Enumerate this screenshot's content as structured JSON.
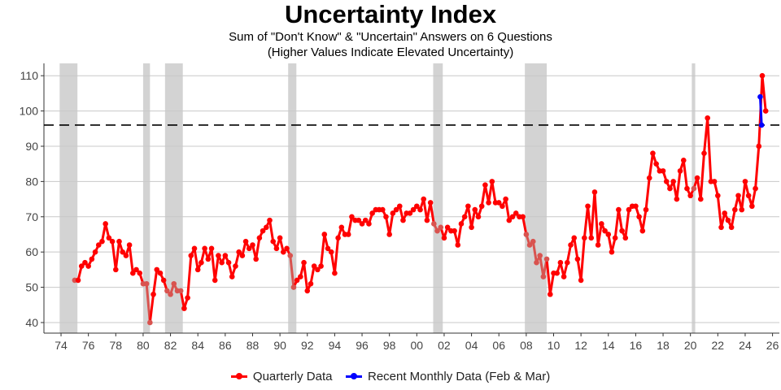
{
  "chart_data": {
    "type": "line",
    "title": "Uncertainty Index",
    "subtitle_1": "Sum of \"Don't Know\" & \"Uncertain\" Answers on 6 Questions",
    "subtitle_2": "(Higher Values Indicate Elevated Uncertainty)",
    "xlabel": "",
    "ylabel": "",
    "xlim": [
      1972.75,
      2026.5
    ],
    "ylim": [
      37,
      113.5
    ],
    "x_ticks": [
      "74",
      "76",
      "78",
      "80",
      "82",
      "84",
      "86",
      "88",
      "90",
      "92",
      "94",
      "96",
      "98",
      "00",
      "02",
      "04",
      "06",
      "08",
      "10",
      "12",
      "14",
      "16",
      "18",
      "20",
      "22",
      "24",
      "26"
    ],
    "y_ticks": [
      40,
      50,
      60,
      70,
      80,
      90,
      100,
      110
    ],
    "grid": "horizontal",
    "reference_line": 96,
    "recessions": [
      [
        1973.9,
        1975.2
      ],
      [
        1980.0,
        1980.5
      ],
      [
        1981.6,
        1982.9
      ],
      [
        1990.6,
        1991.2
      ],
      [
        2001.2,
        2001.9
      ],
      [
        2007.9,
        2009.5
      ],
      [
        2020.1,
        2020.35
      ]
    ],
    "legend_position": "bottom",
    "series": [
      {
        "name": "Quarterly Data",
        "color": "#ff0000",
        "recession_color": "#d9534f",
        "start": 1975.0,
        "frequency": "quarterly",
        "values": [
          52,
          52,
          56,
          57,
          56,
          58,
          60,
          62,
          63,
          68,
          64,
          63,
          55,
          63,
          60,
          59,
          62,
          54,
          55,
          54,
          51,
          51,
          40,
          48,
          55,
          54,
          52,
          49,
          48,
          51,
          49,
          49,
          44,
          47,
          59,
          61,
          55,
          57,
          61,
          58,
          61,
          52,
          59,
          57,
          59,
          57,
          53,
          56,
          60,
          59,
          63,
          61,
          62,
          58,
          64,
          66,
          67,
          69,
          63,
          61,
          64,
          60,
          61,
          59,
          50,
          52,
          53,
          57,
          49,
          51,
          56,
          55,
          56,
          65,
          61,
          60,
          54,
          64,
          67,
          65,
          65,
          70,
          69,
          69,
          68,
          69,
          68,
          71,
          72,
          72,
          72,
          70,
          65,
          71,
          72,
          73,
          69,
          71,
          71,
          72,
          73,
          72,
          75,
          69,
          74,
          68,
          66,
          67,
          64,
          67,
          66,
          66,
          62,
          68,
          70,
          73,
          67,
          72,
          70,
          73,
          79,
          74,
          80,
          74,
          74,
          73,
          75,
          69,
          70,
          71,
          70,
          70,
          65,
          62,
          63,
          57,
          59,
          53,
          58,
          48,
          54,
          54,
          57,
          53,
          57,
          62,
          64,
          58,
          52,
          64,
          73,
          64,
          77,
          62,
          68,
          66,
          65,
          60,
          64,
          72,
          66,
          64,
          72,
          73,
          73,
          70,
          66,
          72,
          81,
          88,
          85,
          83,
          83,
          80,
          78,
          80,
          75,
          83,
          86,
          78,
          76,
          78,
          81,
          75,
          88,
          98,
          80,
          80,
          76,
          67,
          71,
          69,
          67,
          72,
          76,
          72,
          80,
          76,
          73,
          78,
          90,
          110,
          100
        ]
      },
      {
        "name": "Recent Monthly Data (Feb & Mar)",
        "color": "#0000ff",
        "x": [
          2025.1,
          2025.2
        ],
        "values": [
          104,
          96
        ]
      }
    ]
  }
}
